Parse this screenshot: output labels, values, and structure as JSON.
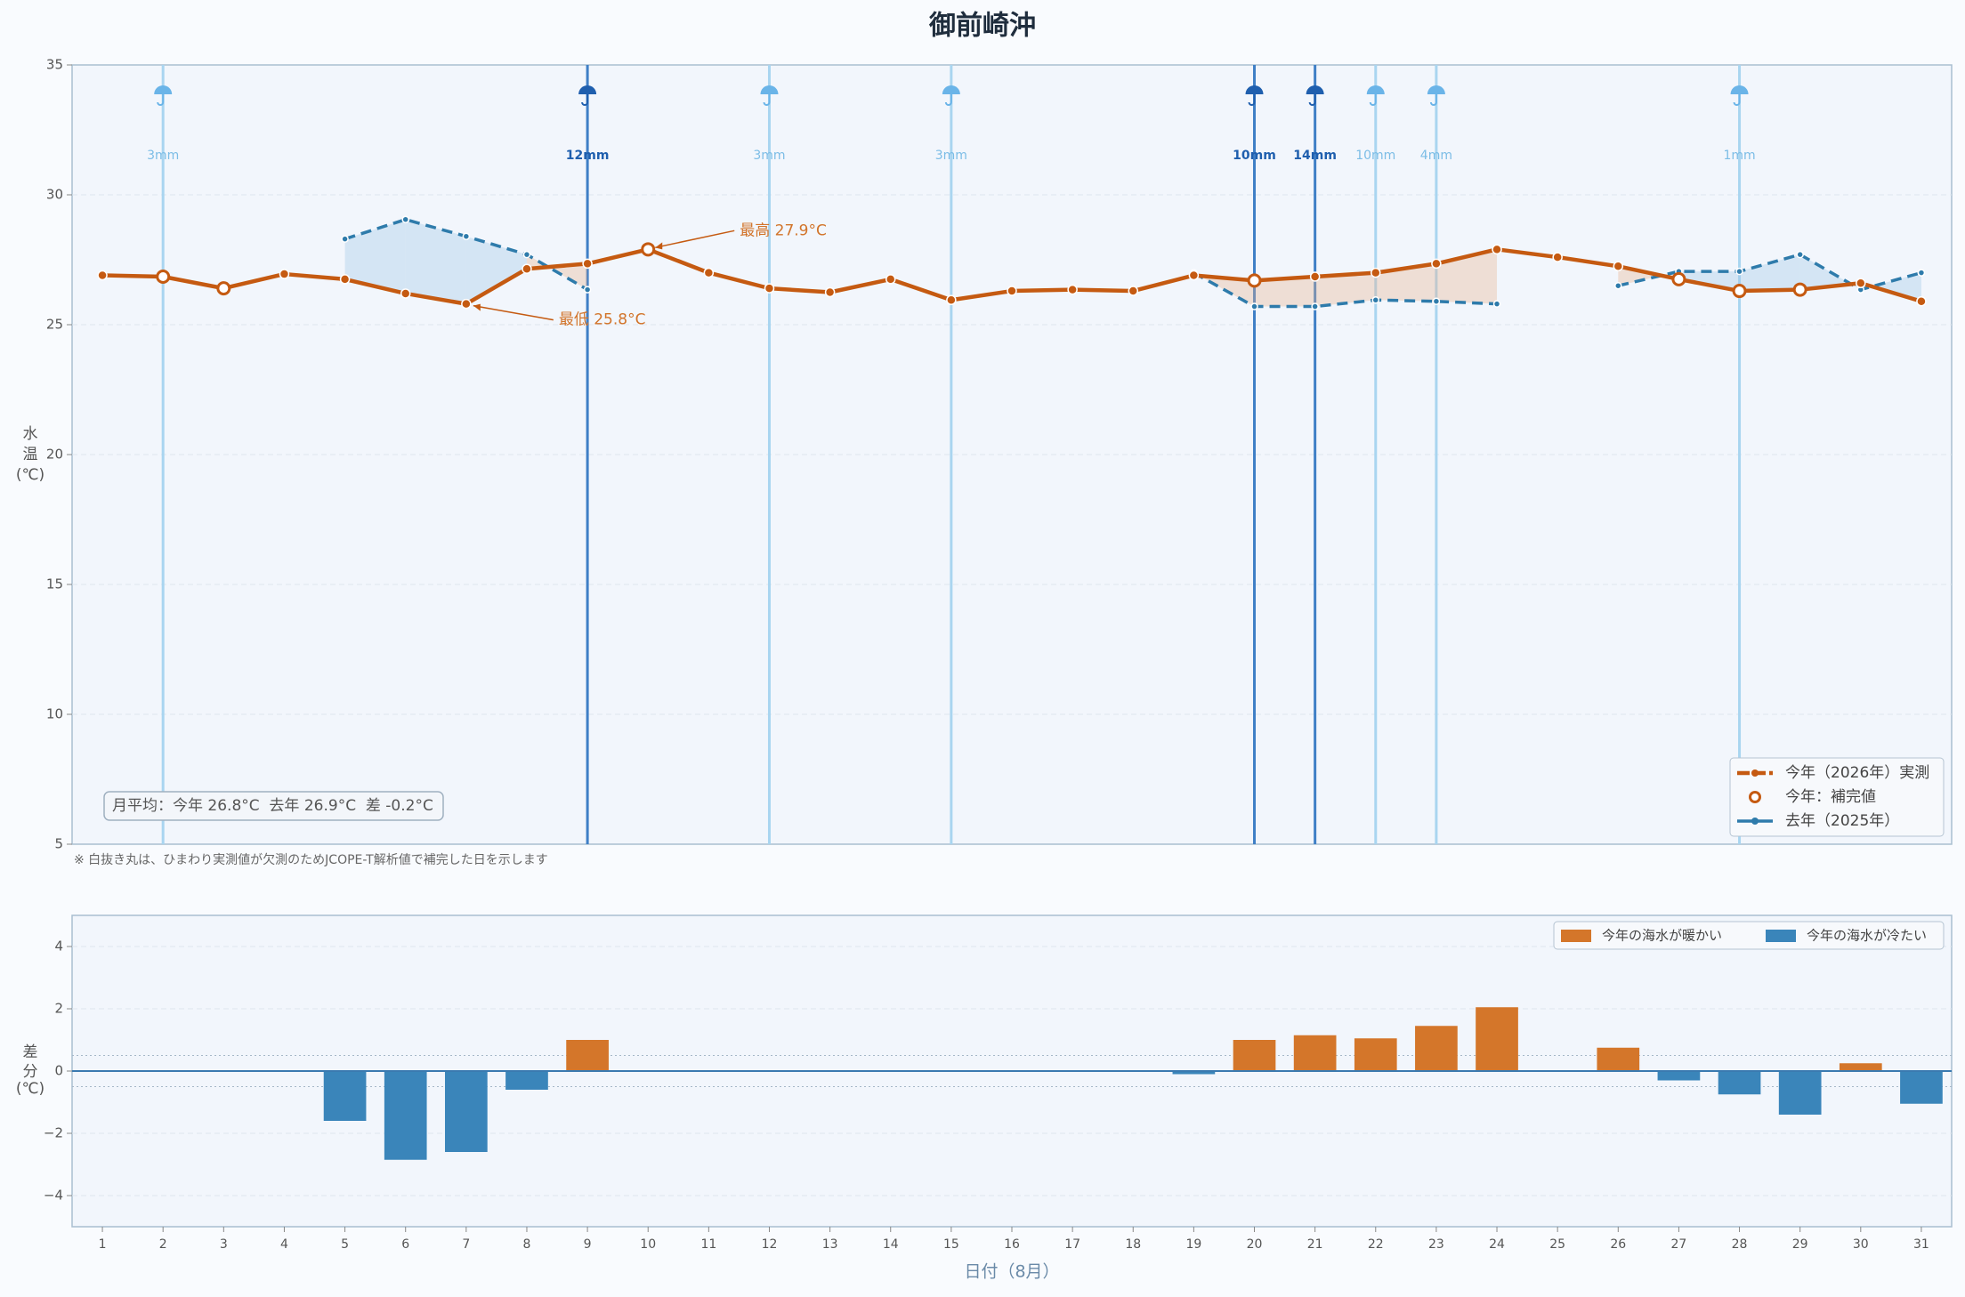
{
  "chart_data": [
    {
      "type": "line",
      "title": "御前崎沖",
      "ylabel": [
        "水",
        "温",
        "(℃)"
      ],
      "x": [
        1,
        2,
        3,
        4,
        5,
        6,
        7,
        8,
        9,
        10,
        11,
        12,
        13,
        14,
        15,
        16,
        17,
        18,
        19,
        20,
        21,
        22,
        23,
        24,
        25,
        26,
        27,
        28,
        29,
        30,
        31
      ],
      "xlim": [
        0.5,
        31.5
      ],
      "ylim": [
        5,
        35
      ],
      "yticks": [
        5,
        10,
        15,
        20,
        25,
        30,
        35
      ],
      "grid": true,
      "series": [
        {
          "name": "今年（2026年）実測",
          "color": "#c55a11",
          "values": [
            26.9,
            26.85,
            26.4,
            26.95,
            26.75,
            26.2,
            25.8,
            27.15,
            27.35,
            27.9,
            27.0,
            26.4,
            26.25,
            26.75,
            25.95,
            26.3,
            26.35,
            26.3,
            26.9,
            26.7,
            26.85,
            27.0,
            27.35,
            27.9,
            27.6,
            27.25,
            26.75,
            26.3,
            26.35,
            26.6,
            25.9
          ],
          "imputed_days": [
            2,
            3,
            10,
            20,
            27,
            28,
            29
          ],
          "imputed_label": "今年：補完値"
        },
        {
          "name": "去年（2025年）",
          "color": "#2e7bab",
          "dash": true,
          "values": [
            null,
            null,
            null,
            null,
            28.3,
            29.05,
            28.4,
            27.7,
            26.35,
            null,
            null,
            null,
            null,
            null,
            null,
            null,
            null,
            null,
            27.0,
            25.7,
            25.7,
            25.95,
            25.9,
            25.8,
            null,
            26.5,
            27.05,
            27.05,
            27.7,
            26.35,
            27.0
          ]
        }
      ],
      "rain": {
        "x": [
          2,
          9,
          12,
          15,
          20,
          21,
          22,
          23,
          28
        ],
        "values": [
          3,
          12,
          3,
          3,
          10,
          14,
          10,
          4,
          1
        ],
        "value_labels": [
          "3mm",
          "12mm",
          "3mm",
          "3mm",
          "10mm",
          "14mm",
          "10mm",
          "4mm",
          "1mm"
        ],
        "colors": [
          "#a9d5f0",
          "#3f7fc6",
          "#a9d5f0",
          "#a9d5f0",
          "#3f7fc6",
          "#3f7fc6",
          "#a9d5f0",
          "#a9d5f0",
          "#a9d5f0"
        ]
      },
      "annotations": [
        {
          "text": "最高 27.9°C",
          "x": 10
        },
        {
          "text": "最低 25.8°C",
          "x": 7
        }
      ],
      "summary": "月平均：今年 26.8°C  去年 26.9°C  差 -0.2°C",
      "note": "※ 白抜き丸は、ひまわり実測値が欠測のためJCOPE-T解析値で補完した日を示します",
      "legend": "lower right"
    },
    {
      "type": "bar",
      "ylabel": [
        "差",
        "分",
        "(℃)"
      ],
      "xlabel": "日付（8月）",
      "x": [
        1,
        2,
        3,
        4,
        5,
        6,
        7,
        8,
        9,
        10,
        11,
        12,
        13,
        14,
        15,
        16,
        17,
        18,
        19,
        20,
        21,
        22,
        23,
        24,
        25,
        26,
        27,
        28,
        29,
        30,
        31
      ],
      "xlim": [
        0.5,
        31.5
      ],
      "ylim": [
        -5,
        5
      ],
      "yticks": [
        {
          "value": -4,
          "label": "−4"
        },
        {
          "value": -2,
          "label": "−2"
        },
        0,
        2,
        4
      ],
      "values": [
        null,
        null,
        null,
        null,
        -1.6,
        -2.85,
        -2.6,
        -0.6,
        1.0,
        null,
        null,
        null,
        null,
        null,
        null,
        null,
        null,
        null,
        -0.1,
        1.0,
        1.15,
        1.05,
        1.45,
        2.05,
        null,
        0.75,
        -0.3,
        -0.75,
        -1.4,
        0.25,
        -1.05
      ],
      "reference_lines": [
        0.5,
        -0.5
      ],
      "grid": true,
      "legend_entries": [
        {
          "name": "今年の海水が暖かい",
          "color": "#d4762a"
        },
        {
          "name": "今年の海水が冷たい",
          "color": "#3a85ba"
        }
      ],
      "legend": "upper right"
    }
  ]
}
